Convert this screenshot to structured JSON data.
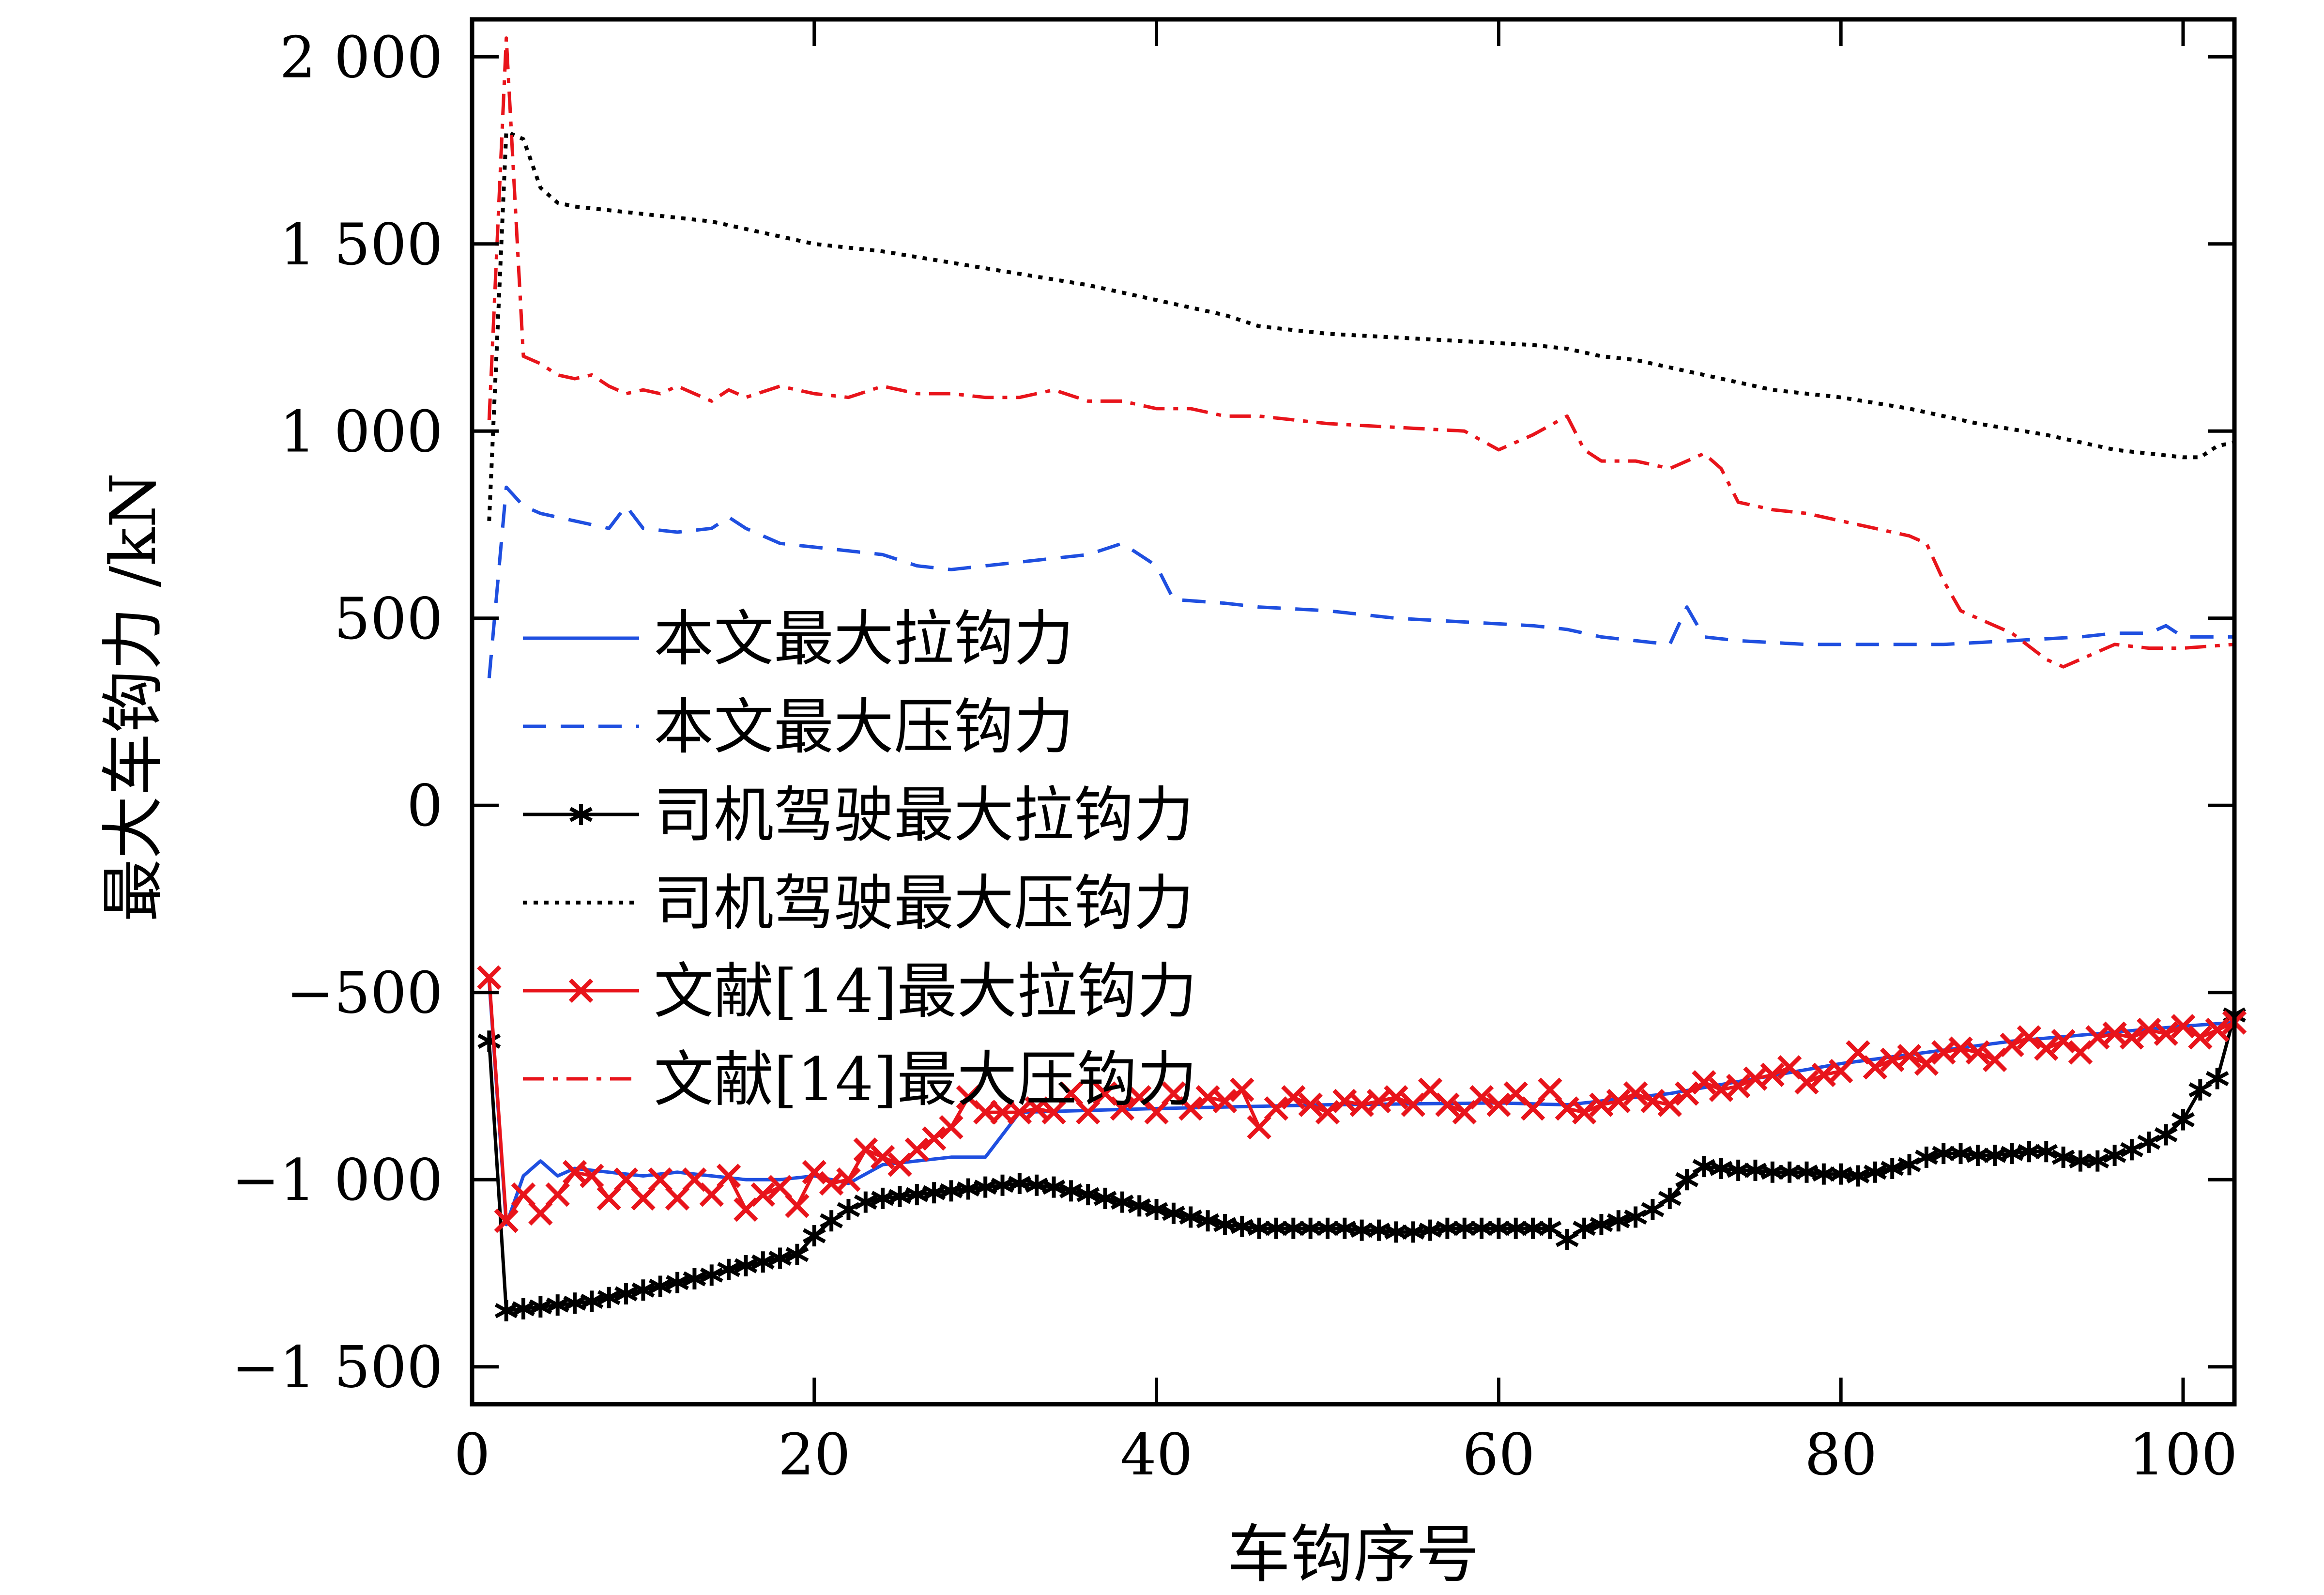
{
  "chart_data": {
    "type": "line",
    "xlabel": "车钩序号",
    "ylabel": "最大车钩力 /kN",
    "xlim": [
      0,
      103
    ],
    "ylim": [
      -1600,
      2100
    ],
    "xticks": [
      0,
      20,
      40,
      60,
      80,
      100
    ],
    "xtick_labels": [
      "0",
      "20",
      "40",
      "60",
      "80",
      "100"
    ],
    "yticks": [
      2000,
      1500,
      1000,
      500,
      0,
      -500,
      -1000,
      -1500
    ],
    "ytick_labels": [
      "2 000",
      "1 500",
      "1 000",
      "500",
      "0",
      "−500",
      "−1 000",
      "−1 500"
    ],
    "grid": false,
    "legend_position": "center-left",
    "series": [
      {
        "name": "本文最大拉钩力",
        "color": "#1f4fe0",
        "style": "solid",
        "marker": "none",
        "x": [
          1,
          2,
          3,
          4,
          5,
          6,
          8,
          10,
          12,
          14,
          16,
          18,
          20,
          22,
          24,
          26,
          28,
          30,
          32,
          36,
          40,
          50,
          60,
          64,
          70,
          80,
          90,
          100,
          103
        ],
        "y": [
          -470,
          -1120,
          -990,
          -950,
          -990,
          -970,
          -980,
          -990,
          -980,
          -990,
          -1000,
          -1000,
          -990,
          -1010,
          -960,
          -950,
          -940,
          -940,
          -820,
          -815,
          -810,
          -800,
          -795,
          -800,
          -770,
          -690,
          -630,
          -590,
          -580
        ]
      },
      {
        "name": "本文最大压钩力",
        "color": "#1f4fe0",
        "style": "dashed",
        "marker": "none",
        "x": [
          1,
          2,
          3,
          4,
          6,
          8,
          9,
          10,
          12,
          14,
          15,
          16,
          18,
          20,
          22,
          24,
          26,
          28,
          30,
          32,
          34,
          36,
          38,
          40,
          41,
          44,
          46,
          50,
          54,
          58,
          62,
          64,
          66,
          68,
          70,
          71,
          72,
          74,
          78,
          82,
          86,
          90,
          94,
          96,
          98,
          99,
          100,
          103
        ],
        "y": [
          340,
          850,
          800,
          780,
          760,
          740,
          800,
          740,
          730,
          740,
          770,
          740,
          700,
          690,
          680,
          670,
          640,
          630,
          640,
          650,
          660,
          670,
          700,
          640,
          550,
          540,
          530,
          520,
          500,
          490,
          480,
          470,
          450,
          440,
          430,
          530,
          450,
          440,
          430,
          430,
          430,
          440,
          450,
          460,
          460,
          480,
          450,
          450
        ]
      },
      {
        "name": "司机驾驶最大拉钩力",
        "color": "#000000",
        "style": "solid",
        "marker": "asterisk",
        "x": [
          1,
          2,
          3,
          4,
          5,
          6,
          7,
          8,
          9,
          10,
          11,
          12,
          13,
          14,
          15,
          16,
          17,
          18,
          19,
          20,
          21,
          22,
          23,
          24,
          25,
          26,
          27,
          28,
          29,
          30,
          31,
          32,
          33,
          34,
          35,
          36,
          37,
          38,
          39,
          40,
          41,
          42,
          43,
          44,
          45,
          46,
          47,
          48,
          49,
          50,
          51,
          52,
          53,
          54,
          55,
          56,
          57,
          58,
          59,
          60,
          61,
          62,
          63,
          64,
          65,
          66,
          67,
          68,
          69,
          70,
          71,
          72,
          73,
          74,
          75,
          76,
          77,
          78,
          79,
          80,
          81,
          82,
          83,
          84,
          85,
          86,
          87,
          88,
          89,
          90,
          91,
          92,
          93,
          94,
          95,
          96,
          97,
          98,
          99,
          100,
          101,
          102,
          103
        ],
        "y": [
          -630,
          -1350,
          -1345,
          -1340,
          -1335,
          -1330,
          -1325,
          -1315,
          -1305,
          -1295,
          -1285,
          -1275,
          -1265,
          -1255,
          -1240,
          -1230,
          -1220,
          -1210,
          -1200,
          -1150,
          -1110,
          -1080,
          -1060,
          -1050,
          -1045,
          -1040,
          -1035,
          -1030,
          -1025,
          -1020,
          -1015,
          -1010,
          -1015,
          -1020,
          -1030,
          -1040,
          -1050,
          -1060,
          -1070,
          -1080,
          -1090,
          -1100,
          -1110,
          -1120,
          -1125,
          -1130,
          -1130,
          -1130,
          -1130,
          -1130,
          -1130,
          -1135,
          -1135,
          -1140,
          -1140,
          -1135,
          -1130,
          -1130,
          -1130,
          -1130,
          -1130,
          -1130,
          -1130,
          -1160,
          -1130,
          -1120,
          -1110,
          -1100,
          -1080,
          -1050,
          -1000,
          -965,
          -970,
          -975,
          -975,
          -980,
          -980,
          -980,
          -985,
          -985,
          -990,
          -980,
          -970,
          -960,
          -940,
          -930,
          -930,
          -935,
          -935,
          -930,
          -925,
          -925,
          -940,
          -950,
          -950,
          -935,
          -920,
          -900,
          -880,
          -840,
          -760,
          -730,
          -560
        ]
      },
      {
        "name": "司机驾驶最大压钩力",
        "color": "#000000",
        "style": "dotted",
        "marker": "none",
        "x": [
          1,
          2,
          3,
          4,
          5,
          6,
          8,
          10,
          12,
          14,
          16,
          18,
          20,
          24,
          28,
          32,
          36,
          40,
          42,
          44,
          46,
          50,
          54,
          58,
          62,
          64,
          66,
          68,
          70,
          72,
          76,
          80,
          84,
          88,
          92,
          96,
          98,
          100,
          101,
          102,
          103
        ],
        "y": [
          760,
          1800,
          1780,
          1650,
          1610,
          1600,
          1590,
          1580,
          1570,
          1560,
          1540,
          1520,
          1500,
          1480,
          1450,
          1420,
          1390,
          1350,
          1330,
          1310,
          1280,
          1260,
          1250,
          1240,
          1230,
          1220,
          1200,
          1190,
          1170,
          1150,
          1110,
          1090,
          1060,
          1020,
          990,
          950,
          940,
          930,
          930,
          960,
          970
        ]
      },
      {
        "name": "文献[14]最大拉钩力",
        "color": "#e8141b",
        "style": "solid",
        "marker": "x",
        "x": [
          1,
          2,
          3,
          4,
          5,
          6,
          7,
          8,
          9,
          10,
          11,
          12,
          13,
          14,
          15,
          16,
          17,
          18,
          19,
          20,
          21,
          22,
          23,
          24,
          25,
          26,
          27,
          28,
          29,
          30,
          31,
          32,
          33,
          34,
          35,
          36,
          37,
          38,
          39,
          40,
          41,
          42,
          43,
          44,
          45,
          46,
          47,
          48,
          49,
          50,
          51,
          52,
          53,
          54,
          55,
          56,
          57,
          58,
          59,
          60,
          61,
          62,
          63,
          64,
          65,
          66,
          67,
          68,
          69,
          70,
          71,
          72,
          73,
          74,
          75,
          76,
          77,
          78,
          79,
          80,
          81,
          82,
          83,
          84,
          85,
          86,
          87,
          88,
          89,
          90,
          91,
          92,
          93,
          94,
          95,
          96,
          97,
          98,
          99,
          100,
          101,
          102,
          103
        ],
        "y": [
          -460,
          -1110,
          -1040,
          -1090,
          -1040,
          -980,
          -990,
          -1050,
          -1000,
          -1050,
          -1000,
          -1050,
          -1000,
          -1040,
          -990,
          -1080,
          -1040,
          -1020,
          -1070,
          -980,
          -1010,
          -1000,
          -920,
          -940,
          -960,
          -920,
          -890,
          -860,
          -780,
          -820,
          -820,
          -820,
          -810,
          -820,
          -770,
          -820,
          -770,
          -810,
          -780,
          -820,
          -770,
          -810,
          -780,
          -790,
          -760,
          -860,
          -810,
          -780,
          -800,
          -820,
          -790,
          -800,
          -790,
          -780,
          -800,
          -760,
          -800,
          -820,
          -780,
          -800,
          -770,
          -810,
          -760,
          -810,
          -820,
          -800,
          -790,
          -770,
          -790,
          -800,
          -770,
          -740,
          -760,
          -750,
          -730,
          -720,
          -700,
          -740,
          -720,
          -710,
          -660,
          -700,
          -680,
          -670,
          -690,
          -660,
          -650,
          -660,
          -680,
          -640,
          -620,
          -650,
          -630,
          -660,
          -620,
          -610,
          -620,
          -600,
          -610,
          -590,
          -620,
          -600,
          -580
        ]
      },
      {
        "name": "文献[14]最大压钩力",
        "color": "#e8141b",
        "style": "dashdot",
        "marker": "none",
        "x": [
          1,
          2,
          3,
          4,
          5,
          6,
          7,
          8,
          9,
          10,
          11,
          12,
          13,
          14,
          15,
          16,
          18,
          20,
          22,
          24,
          26,
          28,
          30,
          32,
          34,
          36,
          38,
          40,
          42,
          44,
          46,
          48,
          50,
          54,
          58,
          60,
          62,
          64,
          65,
          66,
          68,
          70,
          72,
          73,
          74,
          76,
          78,
          80,
          82,
          84,
          85,
          86,
          87,
          88,
          90,
          92,
          93,
          94,
          96,
          98,
          100,
          103
        ],
        "y": [
          1030,
          2050,
          1200,
          1180,
          1150,
          1140,
          1150,
          1120,
          1100,
          1110,
          1100,
          1120,
          1100,
          1080,
          1110,
          1090,
          1120,
          1100,
          1090,
          1120,
          1100,
          1100,
          1090,
          1090,
          1110,
          1080,
          1080,
          1060,
          1060,
          1040,
          1040,
          1030,
          1020,
          1010,
          1000,
          950,
          990,
          1040,
          950,
          920,
          920,
          900,
          940,
          900,
          810,
          790,
          780,
          760,
          740,
          720,
          700,
          600,
          520,
          500,
          460,
          390,
          370,
          390,
          430,
          420,
          420,
          430
        ]
      }
    ]
  }
}
